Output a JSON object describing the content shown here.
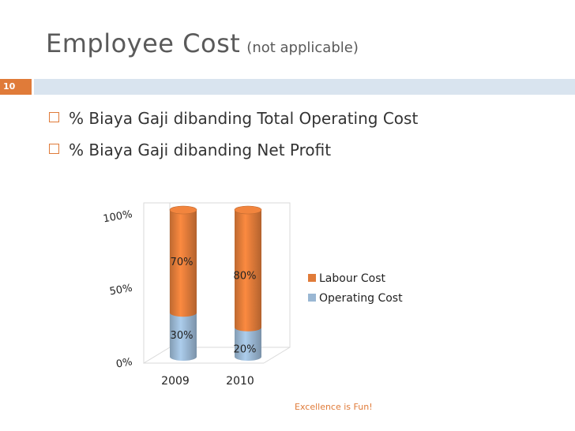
{
  "slide": {
    "title": "Employee Cost",
    "subtitle": "(not applicable)",
    "number": "10",
    "bullets": [
      "% Biaya Gaji dibanding Total Operating Cost",
      "% Biaya Gaji dibanding Net Profit"
    ],
    "footer": "Excellence is Fun!"
  },
  "colors": {
    "accent": "#e07b39",
    "labour": "#e07b39",
    "operating": "#9ab7d3",
    "band": "#d9e4ef"
  },
  "chart_data": {
    "type": "bar",
    "stacked": true,
    "categories": [
      "2009",
      "2010"
    ],
    "series": [
      {
        "name": "Operating Cost",
        "values": [
          30,
          20
        ],
        "labels": [
          "30%",
          "20%"
        ]
      },
      {
        "name": "Labour Cost",
        "values": [
          70,
          80
        ],
        "labels": [
          "70%",
          "80%"
        ]
      }
    ],
    "yticks": [
      "0%",
      "50%",
      "100%"
    ],
    "ylim": [
      0,
      100
    ],
    "legend": "right",
    "grid": false
  }
}
